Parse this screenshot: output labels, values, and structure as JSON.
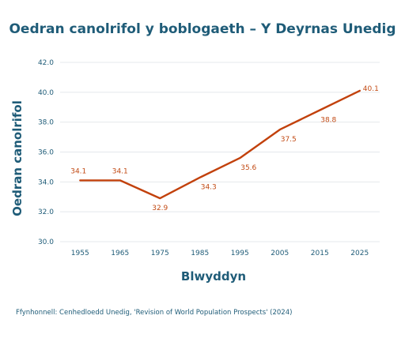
{
  "chart_data": {
    "type": "line",
    "title": "Oedran canolrifol y boblogaeth – Y Deyrnas Unedig",
    "xlabel": "Blwyddyn",
    "ylabel": "Oedran canolrifol",
    "source": "Ffynhonnell: Cenhedloedd Unedig, 'Revision of World Population Prospects' (2024)",
    "x": [
      1955,
      1965,
      1975,
      1985,
      1995,
      2005,
      2015,
      2025
    ],
    "values": [
      34.1,
      34.1,
      32.9,
      34.3,
      35.6,
      37.5,
      38.8,
      40.1
    ],
    "data_labels": [
      "34.1",
      "34.1",
      "32.9",
      "34.3",
      "35.6",
      "37.5",
      "38.8",
      "40.1"
    ],
    "y_ticks": [
      "30.0",
      "32.0",
      "34.0",
      "36.0",
      "38.0",
      "40.0",
      "42.0"
    ],
    "ylim": [
      30,
      42
    ],
    "grid": true,
    "legend": "none",
    "color": "#c2410c"
  }
}
